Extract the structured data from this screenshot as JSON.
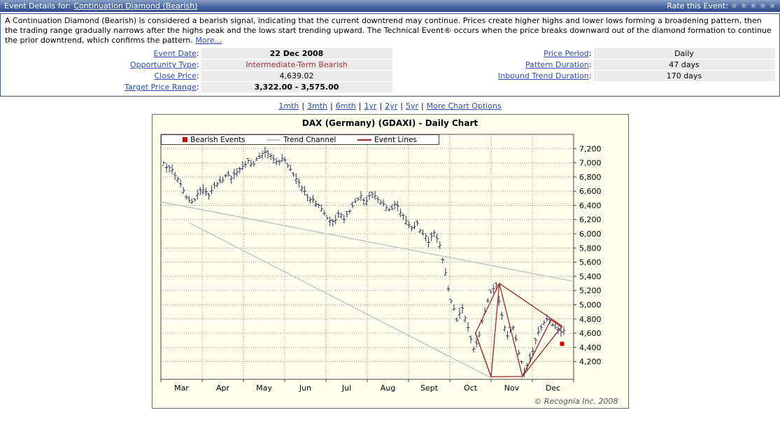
{
  "header": {
    "label": "Event Details for:",
    "event_link": "Continuation Diamond (Bearish)",
    "rate_label": "Rate this Event:",
    "star": "★"
  },
  "description": {
    "text": "A Continuation Diamond (Bearish) is considered a bearish signal, indicating that the current downtrend may continue. Prices create higher highs and lower lows forming a broadening pattern, then the trading range gradually narrows after the highs peak and the lows start trending upward. The Technical Event® occurs when the price breaks downward out of the diamond formation to continue the prior downtrend, which confirms the pattern.",
    "more_link": "More..."
  },
  "details": {
    "colon": ":",
    "left": [
      {
        "label": "Event Date",
        "value": "22 Dec 2008"
      },
      {
        "label": "Opportunity Type",
        "value": "Intermediate-Term Bearish"
      },
      {
        "label": "Close Price",
        "value": "4,639.02"
      },
      {
        "label": "Target Price Range",
        "value": "3,322.00 - 3,575.00"
      }
    ],
    "right": [
      {
        "label": "Price Period",
        "value": "Daily"
      },
      {
        "label": "Pattern Duration",
        "value": "47 days"
      },
      {
        "label": "Inbound Trend Duration",
        "value": "170 days"
      }
    ]
  },
  "timeframe_links": {
    "separator": "|",
    "options": [
      "1mth",
      "3mth",
      "6mth",
      "1yr",
      "2yr",
      "5yr"
    ],
    "more": "More Chart Options"
  },
  "chart_data": {
    "type": "ohlc",
    "title": "DAX (Germany) (GDAXI) - Daily Chart",
    "copyright": "© Recognia Inc. 2008",
    "legend": [
      {
        "label": "Bearish Events",
        "swatch": "square",
        "color": "#cc0000"
      },
      {
        "label": "Trend Channel",
        "swatch": "line",
        "color": "#c0c0c0"
      },
      {
        "label": "Event Lines",
        "swatch": "line",
        "color": "#992626"
      }
    ],
    "ylim": [
      3950,
      7400
    ],
    "y_ticks": [
      4200,
      4400,
      4600,
      4800,
      5000,
      5200,
      5400,
      5600,
      5800,
      6000,
      6200,
      6400,
      6600,
      6800,
      7000,
      7200
    ],
    "x_months": [
      "Mar",
      "Apr",
      "May",
      "Jun",
      "Jul",
      "Aug",
      "Sept",
      "Oct",
      "Nov",
      "Dec"
    ],
    "closes": [
      7000,
      6930,
      6820,
      6700,
      6520,
      6450,
      6560,
      6620,
      6540,
      6680,
      6750,
      6820,
      6780,
      6870,
      6950,
      7030,
      6980,
      7080,
      7150,
      7100,
      7020,
      7060,
      6960,
      6830,
      6720,
      6600,
      6480,
      6420,
      6350,
      6220,
      6170,
      6280,
      6200,
      6320,
      6460,
      6540,
      6460,
      6560,
      6480,
      6420,
      6340,
      6420,
      6300,
      6180,
      6080,
      6150,
      6000,
      5880,
      6020,
      5840,
      5450,
      5050,
      4780,
      4950,
      4680,
      4380,
      4580,
      4900,
      5180,
      5280,
      4850,
      4560,
      4680,
      4320,
      4060,
      4250,
      4500,
      4680,
      4800,
      4720,
      4660,
      4639
    ],
    "last_close": 4639.02,
    "trend_channel": [
      {
        "x1": 0.0,
        "y1": 6450,
        "x2": 1.0,
        "y2": 5330
      },
      {
        "x1": 0.07,
        "y1": 6150,
        "x2": 0.8,
        "y2": 3970
      }
    ],
    "event_lines": [
      [
        [
          0.762,
          4600
        ],
        [
          0.8,
          3985
        ],
        [
          0.82,
          5300
        ],
        [
          0.876,
          3990
        ],
        [
          0.945,
          4790
        ],
        [
          0.972,
          4680
        ]
      ],
      [
        [
          0.762,
          4600
        ],
        [
          0.82,
          5300
        ],
        [
          0.972,
          4700
        ]
      ],
      [
        [
          0.762,
          4600
        ],
        [
          0.8,
          3985
        ],
        [
          0.876,
          3990
        ],
        [
          0.972,
          4700
        ]
      ]
    ],
    "event_marker": {
      "x": 0.972,
      "y": 4450
    },
    "colors": {
      "bar": "#31315e",
      "grid": "#9e9e8c",
      "axis": "#444444",
      "trend": "#c0c0c0",
      "event": "#992626",
      "marker": "#cc0000",
      "background": "#ffffee"
    }
  }
}
